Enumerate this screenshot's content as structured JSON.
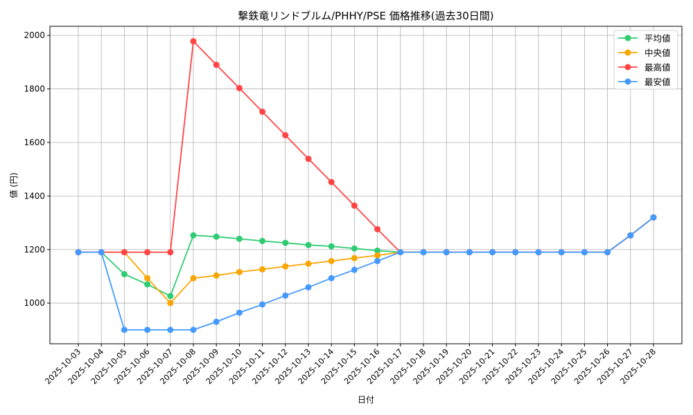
{
  "chart_data": {
    "type": "line",
    "title": "撃鉄竜リンドブルム/PHHY/PSE 価格推移(過去30日間)",
    "xlabel": "日付",
    "ylabel": "値 (円)",
    "ylim": [
      848,
      2034
    ],
    "yticks": [
      1000,
      1200,
      1400,
      1600,
      1800,
      2000
    ],
    "grid": true,
    "legend_position": "top-right",
    "x": [
      "2025-10-03",
      "2025-10-04",
      "2025-10-05",
      "2025-10-06",
      "2025-10-07",
      "2025-10-08",
      "2025-10-09",
      "2025-10-10",
      "2025-10-11",
      "2025-10-12",
      "2025-10-13",
      "2025-10-14",
      "2025-10-15",
      "2025-10-16",
      "2025-10-17",
      "2025-10-18",
      "2025-10-19",
      "2025-10-20",
      "2025-10-21",
      "2025-10-22",
      "2025-10-23",
      "2025-10-24",
      "2025-10-25",
      "2025-10-26",
      "2025-10-27",
      "2025-10-28"
    ],
    "series": [
      {
        "name": "平均値",
        "color": "#2ecc71",
        "values": [
          1190,
          1190,
          1108,
          1070,
          1026,
          1253,
          1248,
          1240,
          1232,
          1225,
          1217,
          1212,
          1204,
          1196,
          1190,
          1190,
          1190,
          1190,
          1190,
          1190,
          1190,
          1190,
          1190,
          1190,
          1253,
          1320
        ]
      },
      {
        "name": "中央値",
        "color": "#f9a602",
        "values": [
          1190,
          1190,
          1190,
          1093,
          1000,
          1093,
          1103,
          1116,
          1126,
          1137,
          1147,
          1157,
          1168,
          1178,
          1190,
          1190,
          1190,
          1190,
          1190,
          1190,
          1190,
          1190,
          1190,
          1190,
          1253,
          1320
        ]
      },
      {
        "name": "最高値",
        "color": "#ff4444",
        "values": [
          1190,
          1190,
          1190,
          1190,
          1190,
          1978,
          1890,
          1803,
          1715,
          1627,
          1539,
          1452,
          1364,
          1276,
          1190,
          1190,
          1190,
          1190,
          1190,
          1190,
          1190,
          1190,
          1190,
          1190,
          1253,
          1320
        ]
      },
      {
        "name": "最安値",
        "color": "#4499ff",
        "values": [
          1190,
          1190,
          900,
          900,
          900,
          900,
          930,
          964,
          995,
          1028,
          1059,
          1093,
          1124,
          1157,
          1190,
          1190,
          1190,
          1190,
          1190,
          1190,
          1190,
          1190,
          1190,
          1190,
          1253,
          1320
        ]
      }
    ]
  }
}
